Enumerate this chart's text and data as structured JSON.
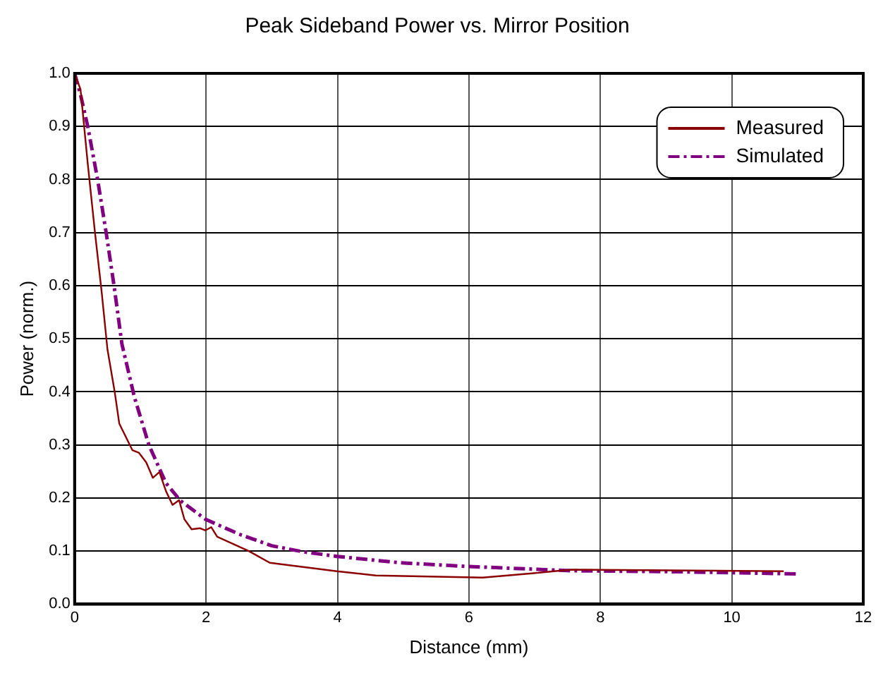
{
  "chart_data": {
    "type": "line",
    "title": "Peak Sideband Power vs. Mirror Position",
    "xlabel": "Distance (mm)",
    "ylabel": "Power (norm.)",
    "xlim": [
      0,
      12
    ],
    "xticks": [
      0,
      2,
      4,
      6,
      8,
      10,
      12
    ],
    "ylim": [
      0,
      1
    ],
    "yticks": [
      {
        "value": 0,
        "label": "0.0"
      },
      0.1,
      0.2,
      0.3,
      0.4,
      0.5,
      0.6,
      0.7,
      0.8,
      0.9,
      {
        "value": 1,
        "label": "1.0"
      }
    ],
    "grid": true,
    "legend": "top right",
    "marker": "none",
    "series": [
      {
        "name": "Measured",
        "color": "#8b0000",
        "line_style": "solid",
        "x": [
          0,
          0.09,
          0.2,
          0.31,
          0.41,
          0.5,
          0.61,
          0.68,
          0.88,
          0.98,
          1.09,
          1.19,
          1.29,
          1.39,
          1.49,
          1.59,
          1.67,
          1.78,
          1.91,
          1.99,
          2.08,
          2.17,
          2.65,
          2.97,
          3.99,
          4.58,
          6.21,
          6.96,
          7.55,
          10.79
        ],
        "values": [
          1,
          0.97,
          0.83,
          0.7,
          0.59,
          0.48,
          0.4,
          0.34,
          0.29,
          0.285,
          0.267,
          0.238,
          0.249,
          0.213,
          0.187,
          0.196,
          0.16,
          0.141,
          0.143,
          0.139,
          0.145,
          0.127,
          0.1,
          0.078,
          0.062,
          0.054,
          0.05,
          0.058,
          0.065,
          0.062
        ]
      },
      {
        "name": "Simulated",
        "color": "#800080",
        "line_style": "dashdot",
        "x": [
          0,
          0.09,
          0.2,
          0.35,
          0.48,
          0.6,
          0.72,
          0.91,
          1.13,
          1.39,
          1.61,
          1.99,
          2.5,
          3,
          3.46,
          3.99,
          4.95,
          5.99,
          7.55,
          9.19,
          11
        ],
        "values": [
          1,
          0.96,
          0.9,
          0.8,
          0.7,
          0.6,
          0.49,
          0.39,
          0.3,
          0.228,
          0.195,
          0.16,
          0.132,
          0.11,
          0.099,
          0.09,
          0.078,
          0.071,
          0.063,
          0.061,
          0.057
        ]
      }
    ]
  }
}
